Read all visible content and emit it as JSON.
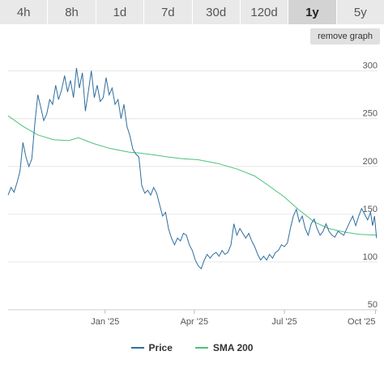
{
  "tabs": [
    {
      "label": "4h",
      "active": false
    },
    {
      "label": "8h",
      "active": false
    },
    {
      "label": "1d",
      "active": false
    },
    {
      "label": "7d",
      "active": false
    },
    {
      "label": "30d",
      "active": false
    },
    {
      "label": "120d",
      "active": false
    },
    {
      "label": "1y",
      "active": true
    },
    {
      "label": "5y",
      "active": false
    }
  ],
  "remove_graph_label": "remove graph",
  "colors": {
    "price": "#2f6e9e",
    "sma": "#4cc27a",
    "grid": "#e6e6e6",
    "axis_text": "#555555"
  },
  "chart_data": {
    "type": "line",
    "title": "",
    "xlabel": "",
    "ylabel": "",
    "ylim": [
      50,
      320
    ],
    "y_ticks": [
      50,
      100,
      150,
      200,
      250,
      300
    ],
    "y_tick_labels": [
      "50",
      "100",
      "150",
      "200",
      "250",
      "300"
    ],
    "x_ticks": [
      "2025-01-01",
      "2025-04-01",
      "2025-07-01",
      "2025-10-01"
    ],
    "x_tick_labels": [
      "Jan '25",
      "Apr '25",
      "Jul '25",
      "Oct '25"
    ],
    "xlim": [
      "2024-09-25",
      "2025-10-03"
    ],
    "grid": true,
    "legend_position": "bottom",
    "series": [
      {
        "name": "Price",
        "points": [
          [
            "2024-09-25",
            170
          ],
          [
            "2024-09-28",
            178
          ],
          [
            "2024-10-01",
            173
          ],
          [
            "2024-10-04",
            183
          ],
          [
            "2024-10-07",
            195
          ],
          [
            "2024-10-10",
            225
          ],
          [
            "2024-10-13",
            210
          ],
          [
            "2024-10-16",
            200
          ],
          [
            "2024-10-19",
            208
          ],
          [
            "2024-10-22",
            245
          ],
          [
            "2024-10-25",
            275
          ],
          [
            "2024-10-28",
            262
          ],
          [
            "2024-10-31",
            248
          ],
          [
            "2024-11-03",
            255
          ],
          [
            "2024-11-06",
            270
          ],
          [
            "2024-11-09",
            265
          ],
          [
            "2024-11-12",
            285
          ],
          [
            "2024-11-15",
            270
          ],
          [
            "2024-11-18",
            280
          ],
          [
            "2024-11-21",
            295
          ],
          [
            "2024-11-24",
            278
          ],
          [
            "2024-11-27",
            290
          ],
          [
            "2024-11-30",
            272
          ],
          [
            "2024-12-03",
            303
          ],
          [
            "2024-12-06",
            282
          ],
          [
            "2024-12-09",
            298
          ],
          [
            "2024-12-12",
            258
          ],
          [
            "2024-12-15",
            278
          ],
          [
            "2024-12-18",
            300
          ],
          [
            "2024-12-21",
            272
          ],
          [
            "2024-12-24",
            285
          ],
          [
            "2024-12-27",
            268
          ],
          [
            "2024-12-30",
            272
          ],
          [
            "2025-01-02",
            293
          ],
          [
            "2025-01-05",
            275
          ],
          [
            "2025-01-08",
            282
          ],
          [
            "2025-01-11",
            265
          ],
          [
            "2025-01-14",
            270
          ],
          [
            "2025-01-17",
            250
          ],
          [
            "2025-01-20",
            265
          ],
          [
            "2025-01-23",
            242
          ],
          [
            "2025-01-26",
            232
          ],
          [
            "2025-01-29",
            218
          ],
          [
            "2025-02-01",
            213
          ],
          [
            "2025-02-04",
            210
          ],
          [
            "2025-02-07",
            180
          ],
          [
            "2025-02-10",
            172
          ],
          [
            "2025-02-13",
            175
          ],
          [
            "2025-02-16",
            170
          ],
          [
            "2025-02-19",
            178
          ],
          [
            "2025-02-22",
            172
          ],
          [
            "2025-02-25",
            160
          ],
          [
            "2025-02-28",
            148
          ],
          [
            "2025-03-03",
            152
          ],
          [
            "2025-03-06",
            135
          ],
          [
            "2025-03-09",
            125
          ],
          [
            "2025-03-12",
            118
          ],
          [
            "2025-03-15",
            125
          ],
          [
            "2025-03-18",
            122
          ],
          [
            "2025-03-21",
            130
          ],
          [
            "2025-03-24",
            128
          ],
          [
            "2025-03-27",
            118
          ],
          [
            "2025-03-30",
            112
          ],
          [
            "2025-04-02",
            102
          ],
          [
            "2025-04-05",
            96
          ],
          [
            "2025-04-08",
            93
          ],
          [
            "2025-04-11",
            102
          ],
          [
            "2025-04-14",
            108
          ],
          [
            "2025-04-17",
            104
          ],
          [
            "2025-04-20",
            108
          ],
          [
            "2025-04-23",
            110
          ],
          [
            "2025-04-26",
            106
          ],
          [
            "2025-04-29",
            112
          ],
          [
            "2025-05-02",
            108
          ],
          [
            "2025-05-05",
            110
          ],
          [
            "2025-05-08",
            118
          ],
          [
            "2025-05-11",
            140
          ],
          [
            "2025-05-14",
            128
          ],
          [
            "2025-05-17",
            135
          ],
          [
            "2025-05-20",
            130
          ],
          [
            "2025-05-23",
            125
          ],
          [
            "2025-05-26",
            130
          ],
          [
            "2025-05-29",
            122
          ],
          [
            "2025-06-01",
            116
          ],
          [
            "2025-06-04",
            108
          ],
          [
            "2025-06-07",
            102
          ],
          [
            "2025-06-10",
            106
          ],
          [
            "2025-06-13",
            102
          ],
          [
            "2025-06-16",
            108
          ],
          [
            "2025-06-19",
            104
          ],
          [
            "2025-06-22",
            110
          ],
          [
            "2025-06-25",
            112
          ],
          [
            "2025-06-28",
            118
          ],
          [
            "2025-07-01",
            116
          ],
          [
            "2025-07-04",
            120
          ],
          [
            "2025-07-07",
            135
          ],
          [
            "2025-07-10",
            148
          ],
          [
            "2025-07-13",
            155
          ],
          [
            "2025-07-16",
            142
          ],
          [
            "2025-07-19",
            148
          ],
          [
            "2025-07-22",
            135
          ],
          [
            "2025-07-25",
            128
          ],
          [
            "2025-07-28",
            140
          ],
          [
            "2025-07-31",
            145
          ],
          [
            "2025-08-03",
            135
          ],
          [
            "2025-08-06",
            128
          ],
          [
            "2025-08-09",
            132
          ],
          [
            "2025-08-12",
            140
          ],
          [
            "2025-08-15",
            132
          ],
          [
            "2025-08-18",
            128
          ],
          [
            "2025-08-21",
            126
          ],
          [
            "2025-08-24",
            132
          ],
          [
            "2025-08-27",
            130
          ],
          [
            "2025-08-30",
            128
          ],
          [
            "2025-09-02",
            135
          ],
          [
            "2025-09-05",
            142
          ],
          [
            "2025-09-08",
            148
          ],
          [
            "2025-09-11",
            138
          ],
          [
            "2025-09-14",
            148
          ],
          [
            "2025-09-17",
            156
          ],
          [
            "2025-09-20",
            150
          ],
          [
            "2025-09-23",
            144
          ],
          [
            "2025-09-26",
            152
          ],
          [
            "2025-09-28",
            138
          ],
          [
            "2025-09-30",
            148
          ],
          [
            "2025-10-02",
            125
          ]
        ]
      },
      {
        "name": "SMA 200",
        "points": [
          [
            "2024-09-25",
            253
          ],
          [
            "2024-10-10",
            242
          ],
          [
            "2024-10-25",
            233
          ],
          [
            "2024-11-10",
            228
          ],
          [
            "2024-11-25",
            227
          ],
          [
            "2024-12-05",
            230
          ],
          [
            "2024-12-20",
            224
          ],
          [
            "2025-01-05",
            219
          ],
          [
            "2025-01-25",
            215
          ],
          [
            "2025-02-05",
            214
          ],
          [
            "2025-02-20",
            212
          ],
          [
            "2025-03-05",
            210
          ],
          [
            "2025-03-20",
            208
          ],
          [
            "2025-04-05",
            207
          ],
          [
            "2025-04-25",
            203
          ],
          [
            "2025-05-15",
            197
          ],
          [
            "2025-06-01",
            190
          ],
          [
            "2025-06-15",
            180
          ],
          [
            "2025-07-01",
            168
          ],
          [
            "2025-07-15",
            155
          ],
          [
            "2025-07-31",
            142
          ],
          [
            "2025-08-15",
            135
          ],
          [
            "2025-09-01",
            131
          ],
          [
            "2025-09-15",
            129
          ],
          [
            "2025-10-02",
            128
          ]
        ]
      }
    ]
  }
}
